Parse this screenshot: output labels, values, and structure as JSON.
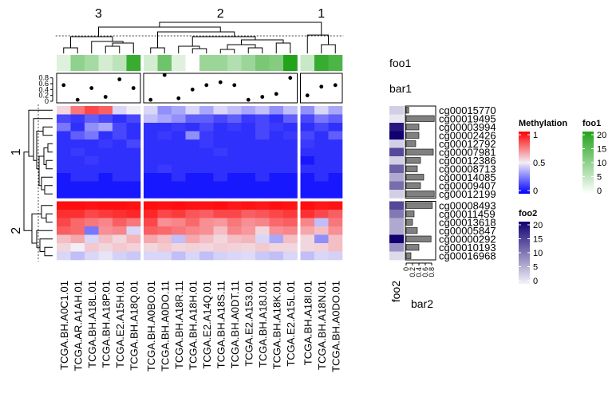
{
  "chart_data": {
    "type": "heatmap",
    "title": "",
    "column_split_titles": [
      "3",
      "2",
      "1"
    ],
    "row_split_titles": [
      "1",
      "2"
    ],
    "columns": [
      "TCGA.BH.A0C1.01",
      "TCGA.AR.A1AH.01",
      "TCGA.BH.A18L.01",
      "TCGA.BH.A18P.01",
      "TCGA.E2.A15H.01",
      "TCGA.BH.A18Q.01",
      "TCGA.BH.A0BO.01",
      "TCGA.BH.A0DO.11",
      "TCGA.BH.A18R.11",
      "TCGA.BH.A18H.01",
      "TCGA.E2.A14Q.01",
      "TCGA.BH.A18S.11",
      "TCGA.BH.A0DT.11",
      "TCGA.E2.A153.01",
      "TCGA.BH.A18J.01",
      "TCGA.BH.A18K.01",
      "TCGA.E2.A15L.01",
      "TCGA.BH.A18I.01",
      "TCGA.BH.A18N.01",
      "TCGA.BH.A0DO.01"
    ],
    "column_groups": [
      6,
      11,
      3
    ],
    "rows": [
      "cg00015770",
      "cg00019495",
      "cg00003994",
      "cg00002426",
      "cg00012792",
      "cg00007981",
      "cg00012386",
      "cg00008713",
      "cg00014085",
      "cg00009407",
      "cg00012199",
      "cg00008493",
      "cg00011459",
      "cg00013618",
      "cg00005847",
      "cg00000292",
      "cg00010193",
      "cg00016968"
    ],
    "row_groups": [
      11,
      7
    ],
    "matrix": [
      [
        0.55,
        0.75,
        0.85,
        0.8,
        0.45,
        0.5,
        0.45,
        0.3,
        0.35,
        0.45,
        0.35,
        0.45,
        0.4,
        0.35,
        0.4,
        0.3,
        0.4,
        0.3,
        0.45,
        0.35
      ],
      [
        0.15,
        0.12,
        0.2,
        0.15,
        0.1,
        0.15,
        0.4,
        0.35,
        0.3,
        0.2,
        0.2,
        0.15,
        0.2,
        0.12,
        0.15,
        0.1,
        0.2,
        0.15,
        0.25,
        0.2
      ],
      [
        0.25,
        0.1,
        0.3,
        0.35,
        0.15,
        0.1,
        0.1,
        0.1,
        0.12,
        0.1,
        0.15,
        0.1,
        0.12,
        0.1,
        0.15,
        0.12,
        0.1,
        0.1,
        0.15,
        0.1
      ],
      [
        0.1,
        0.2,
        0.25,
        0.1,
        0.15,
        0.1,
        0.1,
        0.12,
        0.1,
        0.3,
        0.12,
        0.1,
        0.1,
        0.1,
        0.15,
        0.1,
        0.12,
        0.15,
        0.1,
        0.2
      ],
      [
        0.1,
        0.1,
        0.1,
        0.12,
        0.1,
        0.15,
        0.1,
        0.1,
        0.1,
        0.1,
        0.12,
        0.1,
        0.1,
        0.1,
        0.1,
        0.1,
        0.1,
        0.12,
        0.1,
        0.1
      ],
      [
        0.1,
        0.12,
        0.1,
        0.1,
        0.1,
        0.1,
        0.1,
        0.1,
        0.1,
        0.1,
        0.1,
        0.12,
        0.1,
        0.1,
        0.1,
        0.1,
        0.1,
        0.1,
        0.1,
        0.1
      ],
      [
        0.1,
        0.1,
        0.12,
        0.1,
        0.1,
        0.1,
        0.1,
        0.1,
        0.1,
        0.1,
        0.1,
        0.1,
        0.1,
        0.1,
        0.1,
        0.1,
        0.1,
        0.05,
        0.1,
        0.1
      ],
      [
        0.1,
        0.1,
        0.1,
        0.1,
        0.1,
        0.1,
        0.1,
        0.12,
        0.1,
        0.1,
        0.1,
        0.1,
        0.1,
        0.1,
        0.1,
        0.1,
        0.1,
        0.1,
        0.1,
        0.1
      ],
      [
        0.05,
        0.1,
        0.1,
        0.05,
        0.1,
        0.1,
        0.05,
        0.05,
        0.1,
        0.05,
        0.05,
        0.1,
        0.05,
        0.05,
        0.1,
        0.05,
        0.05,
        0.05,
        0.1,
        0.05
      ],
      [
        0.05,
        0.05,
        0.05,
        0.05,
        0.05,
        0.05,
        0.05,
        0.05,
        0.05,
        0.05,
        0.05,
        0.05,
        0.05,
        0.05,
        0.05,
        0.05,
        0.05,
        0.05,
        0.05,
        0.05
      ],
      [
        0.05,
        0.05,
        0.05,
        0.05,
        0.05,
        0.05,
        0.05,
        0.05,
        0.05,
        0.05,
        0.05,
        0.05,
        0.05,
        0.05,
        0.05,
        0.05,
        0.05,
        0.05,
        0.05,
        0.05
      ],
      [
        0.97,
        0.97,
        0.96,
        0.97,
        0.97,
        0.96,
        0.97,
        0.96,
        0.97,
        0.96,
        0.96,
        0.97,
        0.95,
        0.96,
        0.95,
        0.97,
        0.96,
        0.97,
        0.95,
        0.96
      ],
      [
        0.9,
        0.9,
        0.85,
        0.88,
        0.9,
        0.92,
        0.92,
        0.85,
        0.88,
        0.82,
        0.8,
        0.85,
        0.85,
        0.8,
        0.82,
        0.85,
        0.88,
        0.9,
        0.85,
        0.8
      ],
      [
        0.85,
        0.78,
        0.75,
        0.72,
        0.8,
        0.75,
        0.85,
        0.7,
        0.72,
        0.78,
        0.7,
        0.68,
        0.75,
        0.7,
        0.72,
        0.78,
        0.8,
        0.72,
        0.4,
        0.75
      ],
      [
        0.8,
        0.78,
        0.25,
        0.7,
        0.72,
        0.45,
        0.8,
        0.78,
        0.75,
        0.72,
        0.7,
        0.6,
        0.72,
        0.68,
        0.55,
        0.7,
        0.72,
        0.65,
        0.6,
        0.7
      ],
      [
        0.6,
        0.65,
        0.45,
        0.6,
        0.55,
        0.62,
        0.65,
        0.6,
        0.4,
        0.65,
        0.6,
        0.55,
        0.6,
        0.62,
        0.45,
        0.35,
        0.6,
        0.55,
        0.3,
        0.6
      ],
      [
        0.55,
        0.5,
        0.58,
        0.55,
        0.58,
        0.56,
        0.55,
        0.58,
        0.55,
        0.56,
        0.55,
        0.57,
        0.56,
        0.55,
        0.58,
        0.55,
        0.55,
        0.55,
        0.56,
        0.6
      ],
      [
        0.45,
        0.4,
        0.45,
        0.48,
        0.44,
        0.42,
        0.45,
        0.45,
        0.4,
        0.45,
        0.4,
        0.44,
        0.45,
        0.46,
        0.42,
        0.4,
        0.45,
        0.4,
        0.45,
        0.44
      ]
    ],
    "top_annotations": {
      "foo1": {
        "label": "foo1",
        "values": [
          3,
          10,
          8,
          4,
          6,
          18,
          4,
          13,
          3,
          0,
          9,
          9,
          7,
          9,
          12,
          11,
          20,
          5,
          18,
          16
        ]
      },
      "bar1": {
        "label": "bar1",
        "ticks": [
          "0",
          "0.2",
          "0.4",
          "0.6",
          "0.8"
        ],
        "ylim": [
          0,
          0.9
        ],
        "values": [
          0.55,
          0.05,
          0.45,
          0.15,
          0.75,
          0.45,
          0.05,
          0.9,
          0.1,
          0.4,
          0.55,
          0.65,
          0.55,
          0.05,
          0.15,
          0.25,
          0.8,
          0.2,
          0.5,
          0.55
        ]
      }
    },
    "right_annotations": {
      "foo2": {
        "label": "foo2",
        "values": [
          3,
          1,
          18,
          20,
          3,
          14,
          3,
          12,
          6,
          11,
          3,
          14,
          10,
          6,
          6,
          20,
          8,
          2
        ]
      },
      "bar2": {
        "label": "bar2",
        "ticks": [
          "0",
          "0.2",
          "0.4",
          "0.6",
          "0.8"
        ],
        "xlim": [
          0,
          0.9
        ],
        "values": [
          0.08,
          0.88,
          0.4,
          0.4,
          0.3,
          0.85,
          0.45,
          0.35,
          0.55,
          0.45,
          0.88,
          0.82,
          0.25,
          0.2,
          0.35,
          0.78,
          0.4,
          0.15
        ]
      }
    },
    "legends": {
      "methylation": {
        "title": "Methylation",
        "ticks": [
          "1",
          "0.5",
          "0"
        ],
        "colors": [
          "#ff0000",
          "#f1eef6",
          "#0000ff"
        ]
      },
      "foo1": {
        "title": "foo1",
        "ticks": [
          "20",
          "15",
          "10",
          "5",
          "0"
        ],
        "colors": [
          "#21a31a",
          "#ffffff"
        ]
      },
      "foo2": {
        "title": "foo2",
        "ticks": [
          "20",
          "15",
          "10",
          "5",
          "0"
        ],
        "colors": [
          "#100070",
          "#f4f2f8"
        ]
      }
    }
  }
}
